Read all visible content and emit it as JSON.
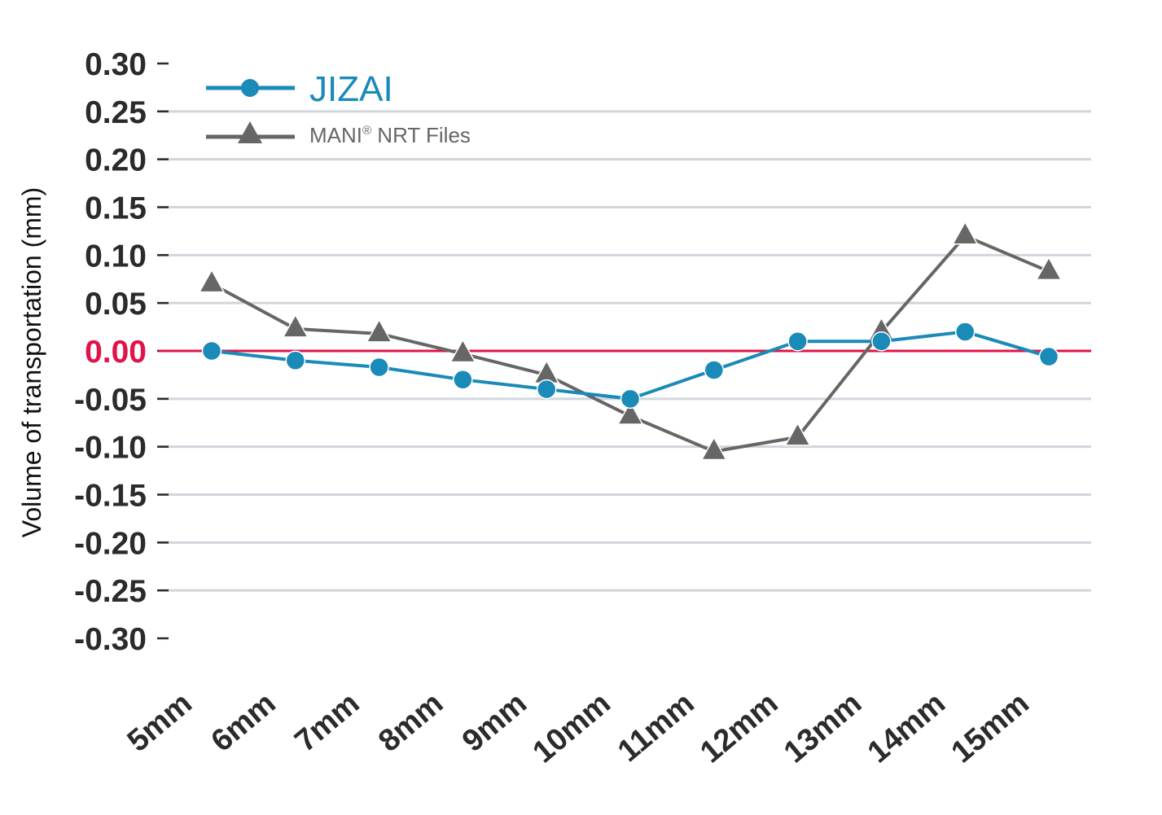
{
  "chart_data": {
    "type": "line",
    "ylabel": "Volume of transportation (mm)",
    "categories": [
      "5mm",
      "6mm",
      "7mm",
      "8mm",
      "9mm",
      "10mm",
      "11mm",
      "12mm",
      "13mm",
      "14mm",
      "15mm"
    ],
    "ylim": [
      -0.3,
      0.3
    ],
    "yticks": [
      "0.30",
      "0.25",
      "0.20",
      "0.15",
      "0.10",
      "0.05",
      "0.00",
      "-0.05",
      "-0.10",
      "-0.15",
      "-0.20",
      "-0.25",
      "-0.30"
    ],
    "grid": true,
    "reference_line": {
      "value": 0.0,
      "color": "#e0134a"
    },
    "legend_position": "top-left",
    "series": [
      {
        "name": "JIZAI",
        "marker": "circle",
        "color": "#1a8ab8",
        "values": [
          0.0,
          -0.01,
          -0.017,
          -0.03,
          -0.04,
          -0.05,
          -0.02,
          0.01,
          0.01,
          0.02,
          -0.006
        ]
      },
      {
        "name": "MANI® NRT Files",
        "legend_text": "MANI",
        "legend_sup": "®",
        "legend_rest": " NRT Files",
        "marker": "triangle",
        "color": "#666666",
        "values": [
          0.07,
          0.023,
          0.018,
          -0.003,
          -0.025,
          -0.068,
          -0.105,
          -0.09,
          0.02,
          0.12,
          0.083
        ]
      }
    ]
  }
}
